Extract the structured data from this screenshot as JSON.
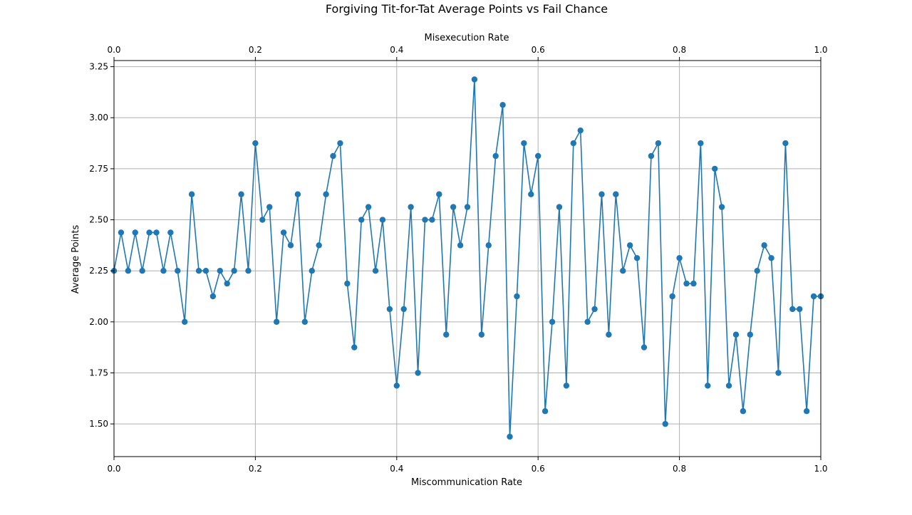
{
  "chart_data": {
    "type": "line",
    "title": "Forgiving Tit-for-Tat Average Points vs Fail Chance",
    "xlabel": "Miscommunication Rate",
    "xlabel_top": "Misexecution Rate",
    "ylabel": "Average Points",
    "xlim": [
      0,
      1
    ],
    "ylim": [
      1.34,
      3.28
    ],
    "x_ticks": [
      0.0,
      0.2,
      0.4,
      0.6,
      0.8,
      1.0
    ],
    "x_tick_labels": [
      "0.0",
      "0.2",
      "0.4",
      "0.6",
      "0.8",
      "1.0"
    ],
    "x_top_ticks": [
      0.0,
      0.2,
      0.4,
      0.6,
      0.8,
      1.0
    ],
    "x_top_tick_labels": [
      "0.0",
      "0.2",
      "0.4",
      "0.6",
      "0.8",
      "1.0"
    ],
    "y_ticks": [
      1.5,
      1.75,
      2.0,
      2.25,
      2.5,
      2.75,
      3.0,
      3.25
    ],
    "y_tick_labels": [
      "1.50",
      "1.75",
      "2.00",
      "2.25",
      "2.50",
      "2.75",
      "3.00",
      "3.25"
    ],
    "grid": true,
    "color": "#1f77b4",
    "marker": "circle",
    "series": [
      {
        "x": [
          0.0,
          0.01,
          0.02,
          0.03,
          0.04,
          0.05,
          0.06,
          0.07,
          0.08,
          0.09,
          0.1,
          0.11,
          0.12,
          0.13,
          0.14,
          0.15,
          0.16,
          0.17,
          0.18,
          0.19,
          0.2,
          0.21,
          0.22,
          0.23,
          0.24,
          0.25,
          0.26,
          0.27,
          0.28,
          0.29,
          0.3,
          0.31,
          0.32,
          0.33,
          0.34,
          0.35,
          0.36,
          0.37,
          0.38,
          0.39,
          0.4,
          0.41,
          0.42,
          0.43,
          0.44,
          0.45,
          0.46,
          0.47,
          0.48,
          0.49,
          0.5,
          0.51,
          0.52,
          0.53,
          0.54,
          0.55,
          0.56,
          0.57,
          0.58,
          0.59,
          0.6,
          0.61,
          0.62,
          0.63,
          0.64,
          0.65,
          0.66,
          0.67,
          0.68,
          0.69,
          0.7,
          0.71,
          0.72,
          0.73,
          0.74,
          0.75,
          0.76,
          0.77,
          0.78,
          0.79,
          0.8,
          0.81,
          0.82,
          0.83,
          0.84,
          0.85,
          0.86,
          0.87,
          0.88,
          0.89,
          0.9,
          0.91,
          0.92,
          0.93,
          0.94,
          0.95,
          0.96,
          0.97,
          0.98,
          0.99,
          1.0
        ],
        "y": [
          2.25,
          2.4375,
          2.25,
          2.4375,
          2.25,
          2.4375,
          2.4375,
          2.25,
          2.4375,
          2.25,
          2.0,
          2.625,
          2.25,
          2.25,
          2.125,
          2.25,
          2.1875,
          2.25,
          2.625,
          2.25,
          2.875,
          2.5,
          2.5625,
          2.0,
          2.4375,
          2.375,
          2.625,
          2.0,
          2.25,
          2.375,
          2.625,
          2.8125,
          2.875,
          2.1875,
          1.875,
          2.5,
          2.5625,
          2.25,
          2.5,
          2.0625,
          1.6875,
          2.0625,
          2.5625,
          1.75,
          2.5,
          2.5,
          2.625,
          1.9375,
          2.5625,
          2.375,
          2.5625,
          3.1875,
          1.9375,
          2.375,
          2.8125,
          3.0625,
          1.4375,
          2.125,
          2.875,
          2.625,
          2.8125,
          1.5625,
          2.0,
          2.5625,
          1.6875,
          2.875,
          2.9375,
          2.0,
          2.0625,
          2.625,
          1.9375,
          2.625,
          2.25,
          2.375,
          2.3125,
          1.875,
          2.8125,
          2.875,
          1.5,
          2.125,
          2.3125,
          2.1875,
          2.1875,
          2.875,
          1.6875,
          2.75,
          2.5625,
          1.6875,
          1.9375,
          1.5625,
          1.9375,
          2.25,
          2.375,
          2.3125,
          1.75,
          2.875,
          2.0625,
          2.0625,
          1.5625,
          2.125,
          2.125
        ]
      }
    ]
  }
}
